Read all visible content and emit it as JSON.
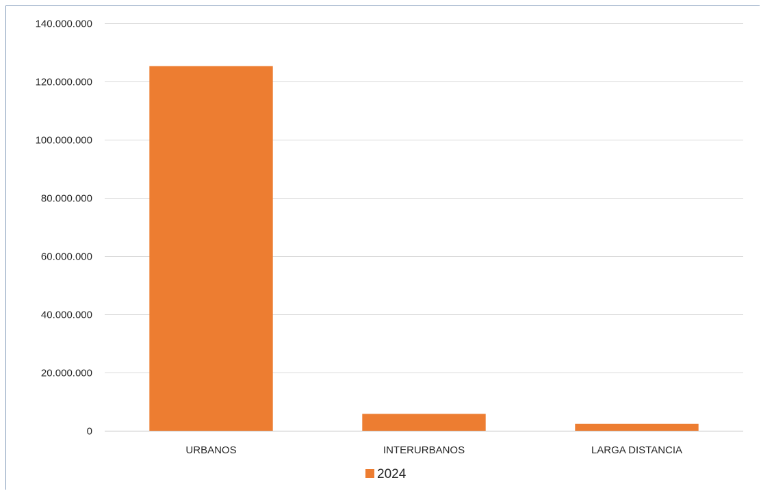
{
  "chart_data": {
    "type": "bar",
    "categories": [
      "URBANOS",
      "INTERURBANOS",
      "LARGA DISTANCIA"
    ],
    "series": [
      {
        "name": "2024",
        "values": [
          125300000,
          5800000,
          2400000
        ]
      }
    ],
    "ylim": [
      0,
      140000000
    ],
    "yticks": [
      0,
      20000000,
      40000000,
      60000000,
      80000000,
      100000000,
      120000000,
      140000000
    ],
    "ytick_labels": [
      "0",
      "20.000.000",
      "40.000.000",
      "60.000.000",
      "80.000.000",
      "100.000.000",
      "120.000.000",
      "140.000.000"
    ],
    "grid": true,
    "legend_position": "bottom",
    "colors": {
      "bar": "#ED7D31",
      "grid": "#d9d9d9",
      "axis": "#bfbfbf"
    }
  }
}
